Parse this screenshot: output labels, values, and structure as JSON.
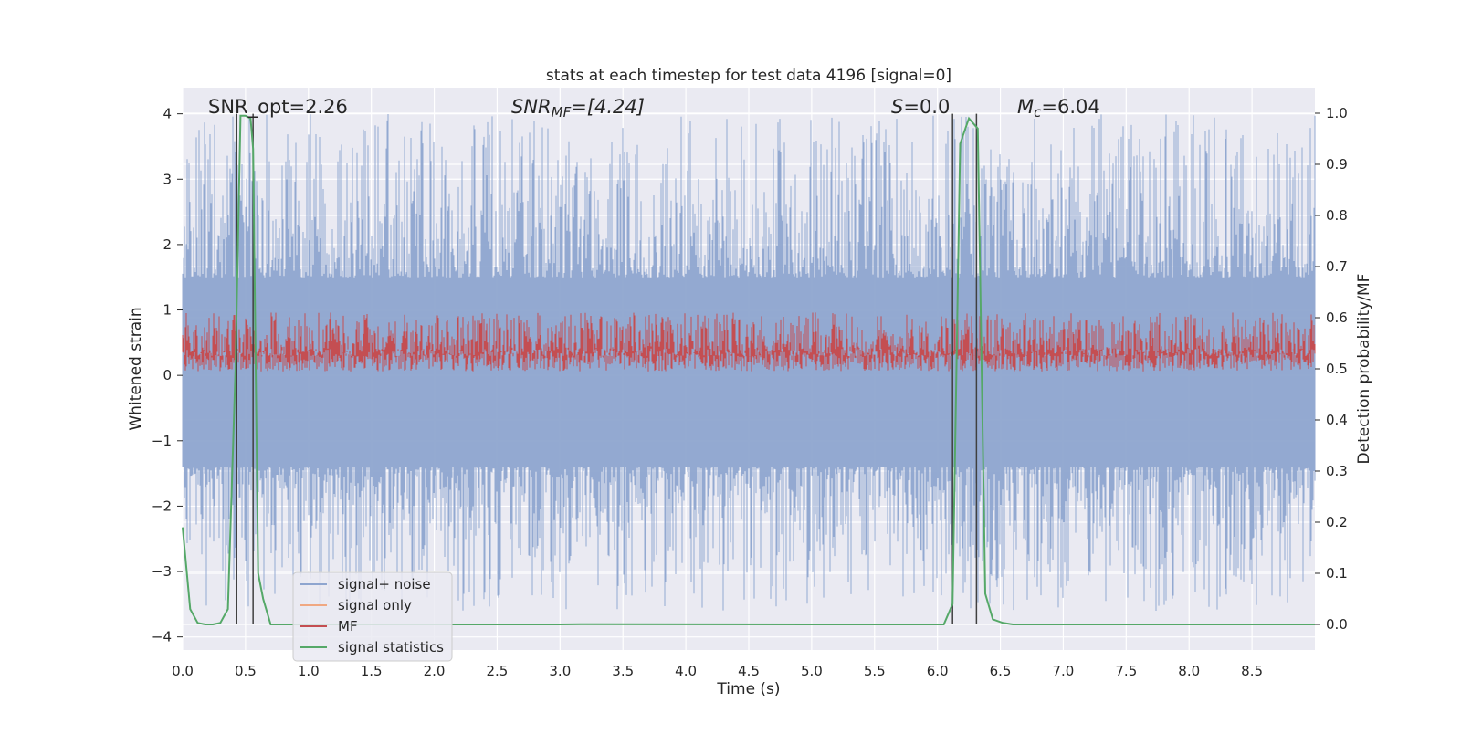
{
  "chart_data": {
    "type": "line",
    "title": "stats at each timestep for test data 4196 [signal=0]",
    "xlabel": "Time (s)",
    "ylabel": "Whitened strain",
    "y2label": "Detection probability/MF",
    "xlim": [
      0.0,
      9.0
    ],
    "ylim": [
      -4.2,
      4.4
    ],
    "y2lim": [
      -0.05,
      1.05
    ],
    "xticks": [
      0.0,
      0.5,
      1.0,
      1.5,
      2.0,
      2.5,
      3.0,
      3.5,
      4.0,
      4.5,
      5.0,
      5.5,
      6.0,
      6.5,
      7.0,
      7.5,
      8.0,
      8.5
    ],
    "xtick_labels": [
      "0.0",
      "0.5",
      "1.0",
      "1.5",
      "2.0",
      "2.5",
      "3.0",
      "3.5",
      "4.0",
      "4.5",
      "5.0",
      "5.5",
      "6.0",
      "6.5",
      "7.0",
      "7.5",
      "8.0",
      "8.5"
    ],
    "yticks": [
      4,
      3,
      2,
      1,
      0,
      -1,
      -2,
      -3,
      -4
    ],
    "ytick_labels": [
      "4",
      "3",
      "2",
      "1",
      "0",
      "−1",
      "−2",
      "−3",
      "−4"
    ],
    "y2ticks": [
      1.0,
      0.9,
      0.8,
      0.7,
      0.6,
      0.5,
      0.4,
      0.3,
      0.2,
      0.1,
      0.0
    ],
    "y2tick_labels": [
      "1.0",
      "0.9",
      "0.8",
      "0.7",
      "0.6",
      "0.5",
      "0.4",
      "0.3",
      "0.2",
      "0.1",
      "0.0"
    ],
    "grid": true,
    "legend_position": "lower-left",
    "annotations": {
      "snr_opt": "SNR_opt=2.26",
      "snr_mf_sym": "SNR",
      "snr_mf_sub": "MF",
      "snr_mf_val": "=[4.24]",
      "s_sym": "S",
      "s_val": "=0.0",
      "mc_sym": "M",
      "mc_sub": "c",
      "mc_val": "=6.04"
    },
    "series": [
      {
        "name": "signal+ noise",
        "color": "#8ea5cf",
        "axis": "left",
        "kind": "noise",
        "envelope": {
          "x": [
            0.0,
            9.0
          ],
          "y": [
            -3.6,
            4.0
          ]
        }
      },
      {
        "name": "signal only",
        "color": "#f0a882",
        "axis": "left",
        "kind": "flat",
        "values": []
      },
      {
        "name": "MF",
        "color": "#c44e52",
        "axis": "right",
        "kind": "noise",
        "envelope": {
          "x": [
            0.0,
            9.0
          ],
          "y": [
            0.495,
            0.61
          ]
        }
      },
      {
        "name": "signal statistics",
        "color": "#55a868",
        "axis": "right",
        "x": [
          0.0,
          0.06,
          0.12,
          0.18,
          0.24,
          0.3,
          0.36,
          0.42,
          0.46,
          0.5,
          0.54,
          0.56,
          0.6,
          0.64,
          0.7,
          0.76,
          3.0,
          3.2,
          5.0,
          6.05,
          6.12,
          6.18,
          6.25,
          6.32,
          6.38,
          6.44,
          6.52,
          6.6,
          9.0
        ],
        "y": [
          0.19,
          0.03,
          0.003,
          0.0,
          0.0,
          0.003,
          0.03,
          0.5,
          0.995,
          0.995,
          0.99,
          0.93,
          0.1,
          0.05,
          0.0,
          0.0,
          0.0,
          0.0005,
          0.0,
          0.0,
          0.04,
          0.94,
          0.99,
          0.97,
          0.06,
          0.01,
          0.003,
          0.0,
          0.0
        ]
      }
    ],
    "markers": {
      "color": "#404040",
      "x": [
        0.43,
        0.56,
        6.12,
        6.31
      ]
    }
  },
  "colors": {
    "plot_bg": "#eaeaf2",
    "grid": "#ffffff",
    "text": "#262626"
  }
}
